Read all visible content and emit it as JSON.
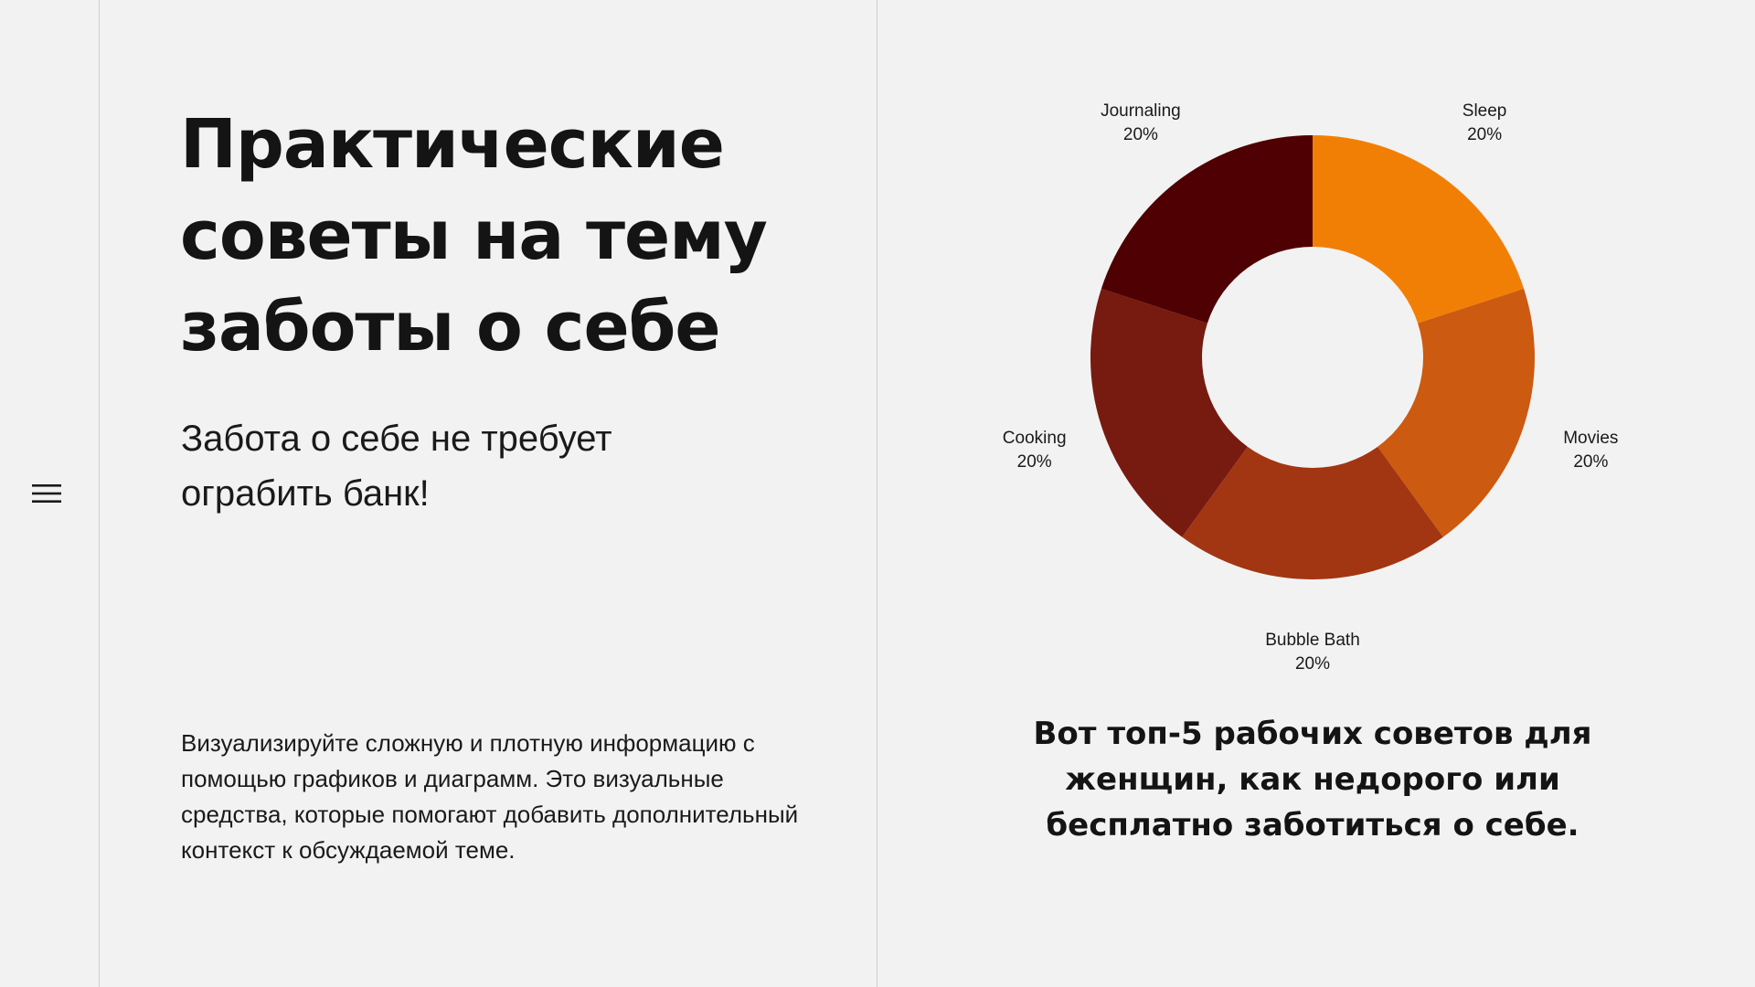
{
  "slide": {
    "title": "Практические советы на тему заботы о себе",
    "subtitle": "Забота о себе не требует ограбить банк!",
    "body": "Визуализируйте сложную и плотную информацию с помощью графиков и диаграмм. Это визуальные средства, которые помогают добавить дополнительный контекст к обсуждаемой теме.",
    "caption": "Вот топ-5 рабочих советов для женщин, как недорого или бесплатно заботиться о себе."
  },
  "menu": {
    "icon": "hamburger-menu-icon"
  },
  "colors": {
    "background": "#f2f2f2",
    "divider": "#cfcfcf",
    "text": "#141414"
  },
  "chart_data": {
    "type": "pie",
    "variant": "donut",
    "categories": [
      "Sleep",
      "Movies",
      "Bubble Bath",
      "Cooking",
      "Journaling"
    ],
    "values": [
      20,
      20,
      20,
      20,
      20
    ],
    "value_labels": [
      "20%",
      "20%",
      "20%",
      "20%",
      "20%"
    ],
    "colors": [
      "#f27f05",
      "#cc5a10",
      "#a23612",
      "#771a10",
      "#4e0002"
    ],
    "start_angle_deg": 0,
    "direction": "clockwise",
    "legend": "none",
    "labels_position": "outside"
  }
}
